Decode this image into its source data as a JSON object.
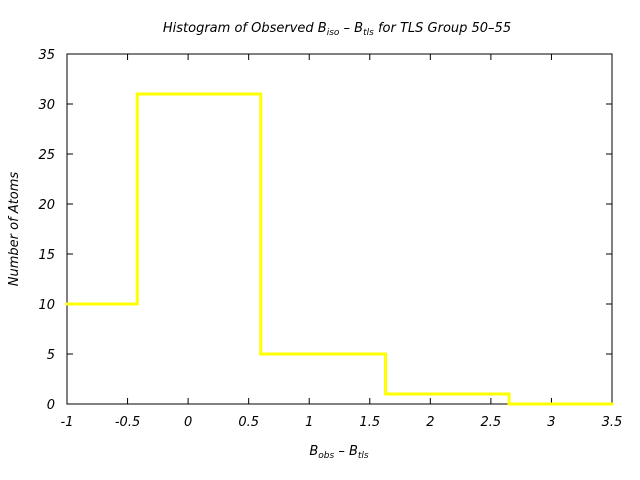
{
  "chart_data": {
    "type": "step",
    "title": {
      "prefix": "Histogram of Observed B",
      "sub1": "iso",
      "mid": " – B",
      "sub2": "tls",
      "suffix": " for TLS Group 50–55"
    },
    "xlabel": {
      "a": "B",
      "a_sub": "obs",
      "mid": " – B",
      "b_sub": "tls"
    },
    "ylabel": "Number of Atoms",
    "xlim": [
      -1,
      3.5
    ],
    "ylim": [
      0,
      35
    ],
    "x_ticks": [
      "-1",
      "-0.5",
      "0",
      "0.5",
      "1",
      "1.5",
      "2",
      "2.5",
      "3",
      "3.5"
    ],
    "x_tick_values": [
      -1,
      -0.5,
      0,
      0.5,
      1,
      1.5,
      2,
      2.5,
      3,
      3.5
    ],
    "y_ticks": [
      "0",
      "5",
      "10",
      "15",
      "20",
      "25",
      "30",
      "35"
    ],
    "y_tick_values": [
      0,
      5,
      10,
      15,
      20,
      25,
      30,
      35
    ],
    "bin_edges": [
      -1,
      -0.42,
      0.6,
      1.63,
      2.65,
      3.5
    ],
    "values": [
      10,
      31,
      5,
      1,
      0
    ],
    "line_color": "#ffff00",
    "grid": false
  }
}
